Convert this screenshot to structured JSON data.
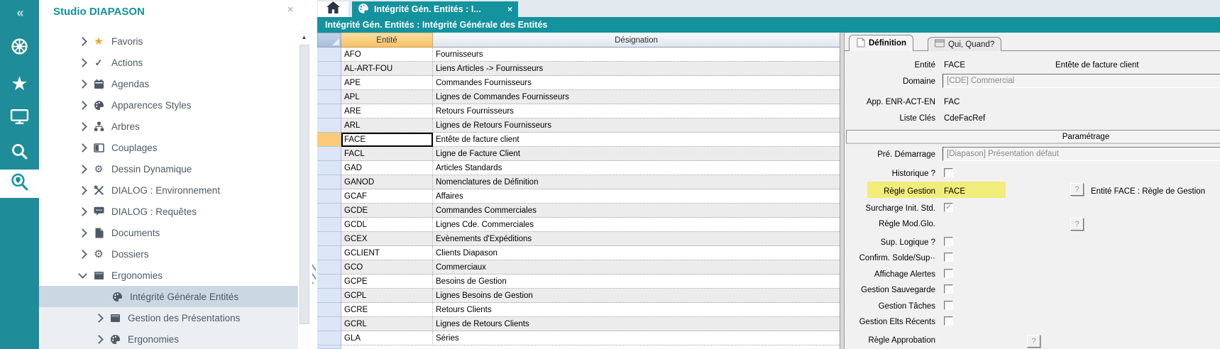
{
  "glyphs": {
    "collapse": "«",
    "close": "×",
    "scroll_up": "▲",
    "check": "✓",
    "help": "?"
  },
  "rail": {
    "items": [
      {
        "name": "modules",
        "icon": "wheel-icon"
      },
      {
        "name": "favorites",
        "icon": "star-icon"
      },
      {
        "name": "desktop",
        "icon": "monitor-icon"
      },
      {
        "name": "search",
        "icon": "search-icon"
      },
      {
        "name": "search-location",
        "icon": "search-location-icon",
        "active": true
      }
    ]
  },
  "sidebar": {
    "title": "Studio DIAPASON",
    "items": [
      {
        "label": "Favoris",
        "icon": "star-icon",
        "level": 0,
        "chevron": "right"
      },
      {
        "label": "Actions",
        "icon": "check-icon",
        "level": 0,
        "chevron": "right"
      },
      {
        "label": "Agendas",
        "icon": "calendar-icon",
        "level": 0,
        "chevron": "right"
      },
      {
        "label": "Apparences Styles",
        "icon": "palette-icon",
        "level": 0,
        "chevron": "right"
      },
      {
        "label": "Arbres",
        "icon": "tree-icon",
        "level": 0,
        "chevron": "right"
      },
      {
        "label": "Couplages",
        "icon": "columns-icon",
        "level": 0,
        "chevron": "right"
      },
      {
        "label": "Dessin Dynamique",
        "icon": "gear-outline-icon",
        "level": 0,
        "chevron": "right"
      },
      {
        "label": "DIALOG : Environnement",
        "icon": "tools-icon",
        "level": 0,
        "chevron": "right"
      },
      {
        "label": "DIALOG : Requêtes",
        "icon": "chat-icon",
        "level": 0,
        "chevron": "right"
      },
      {
        "label": "Documents",
        "icon": "document-icon",
        "level": 0,
        "chevron": "right"
      },
      {
        "label": "Dossiers",
        "icon": "gear-solid-icon",
        "level": 0,
        "chevron": "right"
      },
      {
        "label": "Ergonomies",
        "icon": "window-icon",
        "level": 0,
        "chevron": "down"
      },
      {
        "label": "Intégrité Générale Entités",
        "icon": "palette-icon",
        "level": 1,
        "chevron": "none",
        "selected": true
      },
      {
        "label": "Gestion des Présentations",
        "icon": "window-icon",
        "level": 1,
        "chevron": "right"
      },
      {
        "label": "Ergonomies",
        "icon": "palette-icon",
        "level": 1,
        "chevron": "right"
      }
    ]
  },
  "tabs": {
    "home": {
      "icon": "home-icon"
    },
    "active": {
      "icon": "palette-icon",
      "label": "Intégrité Gén. Entités : I...",
      "close": "×"
    }
  },
  "header_bar": {
    "title": "Intégrité Gén. Entités : Intégrité Générale des Entités"
  },
  "table": {
    "columns": [
      "Entité",
      "Désignation"
    ],
    "selected_code": "FACE",
    "rows": [
      {
        "code": "AFO",
        "designation": "Fournisseurs"
      },
      {
        "code": "AL-ART-FOU",
        "designation": "Liens Articles -> Fournisseurs"
      },
      {
        "code": "APE",
        "designation": "Commandes Fournisseurs"
      },
      {
        "code": "APL",
        "designation": "Lignes de Commandes Fournisseurs"
      },
      {
        "code": "ARE",
        "designation": "Retours Fournisseurs"
      },
      {
        "code": "ARL",
        "designation": "Lignes de Retours Fournisseurs"
      },
      {
        "code": "FACE",
        "designation": "Entête de facture client"
      },
      {
        "code": "FACL",
        "designation": "Ligne de Facture Client"
      },
      {
        "code": "GAD",
        "designation": "Articles Standards"
      },
      {
        "code": "GANOD",
        "designation": "Nomenclatures de Définition"
      },
      {
        "code": "GCAF",
        "designation": "Affaires"
      },
      {
        "code": "GCDE",
        "designation": "Commandes Commerciales"
      },
      {
        "code": "GCDL",
        "designation": "Lignes Cde. Commerciales"
      },
      {
        "code": "GCEX",
        "designation": "Evènements d'Expéditions"
      },
      {
        "code": "GCLIENT",
        "designation": "Clients Diapason"
      },
      {
        "code": "GCO",
        "designation": "Commerciaux"
      },
      {
        "code": "GCPE",
        "designation": "Besoins de Gestion"
      },
      {
        "code": "GCPL",
        "designation": "Lignes Besoins de Gestion"
      },
      {
        "code": "GCRE",
        "designation": "Retours Clients"
      },
      {
        "code": "GCRL",
        "designation": "Lignes de Retours Clients"
      },
      {
        "code": "GLA",
        "designation": "Séries"
      }
    ]
  },
  "panel": {
    "tabs": [
      {
        "label": "Définition",
        "icon": "note-icon",
        "active": true
      },
      {
        "label": "Qui, Quand?",
        "icon": "calendar-small-icon",
        "active": false
      }
    ],
    "rows": [
      {
        "type": "text2",
        "label": "Entité",
        "value": "FACE",
        "value2": "Entête de facture client"
      },
      {
        "type": "input",
        "label": "Domaine",
        "value": "[CDE] Commercial"
      },
      {
        "type": "text",
        "label": "App. ENR-ACT-EN",
        "value": "FAC"
      },
      {
        "type": "text",
        "label": "Liste Clés",
        "value": "CdeFacRef"
      },
      {
        "type": "group",
        "label": "Paramétrage"
      },
      {
        "type": "input",
        "label": "Pré. Démarrage",
        "value": "[Diapason] Présentation défaut"
      },
      {
        "type": "checkbox",
        "label": "Historique ?",
        "checked": false
      },
      {
        "type": "rule",
        "label": "Règle Gestion",
        "value": "FACE",
        "highlight": true,
        "desc": "Entité FACE : Règle de Gestion"
      },
      {
        "type": "checkbox",
        "label": "Surcharge Init. Std.",
        "checked": true
      },
      {
        "type": "rule",
        "label": "Règle Mod.Glo.",
        "value": "",
        "highlight": false,
        "desc": ""
      },
      {
        "type": "checkbox",
        "label": "Sup. Logique ?",
        "checked": false
      },
      {
        "type": "checkbox",
        "label": "Confirm. Solde/Sup··",
        "checked": false
      },
      {
        "type": "checkbox",
        "label": "Affichage Alertes",
        "checked": false
      },
      {
        "type": "checkbox",
        "label": "Gestion Sauvegarde",
        "checked": false
      },
      {
        "type": "checkbox",
        "label": "Gestion Tâches",
        "checked": false
      },
      {
        "type": "checkbox",
        "label": "Gestion Elts Récents",
        "checked": false
      },
      {
        "type": "rule2",
        "label": "Règle Approbation"
      }
    ]
  }
}
